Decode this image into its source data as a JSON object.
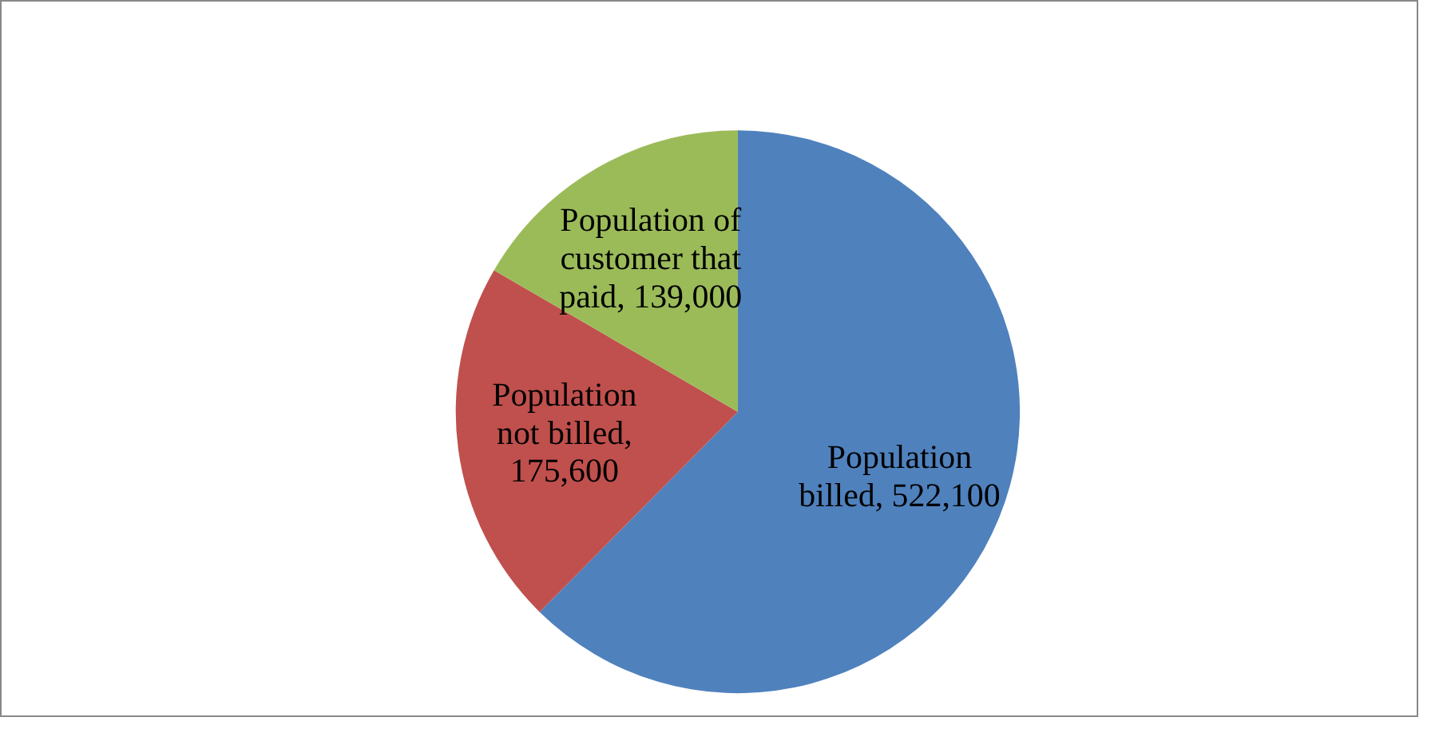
{
  "chart_data": {
    "type": "pie",
    "categories": [
      "Population billed",
      "Population not billed",
      "Population of customer that paid"
    ],
    "values": [
      522100,
      175600,
      139000
    ],
    "colors": [
      "#4f81bd",
      "#c0504d",
      "#9bbb59"
    ],
    "value_labels": [
      ", 522,100",
      ", 175,600",
      ", 139,000"
    ],
    "legend": false
  }
}
